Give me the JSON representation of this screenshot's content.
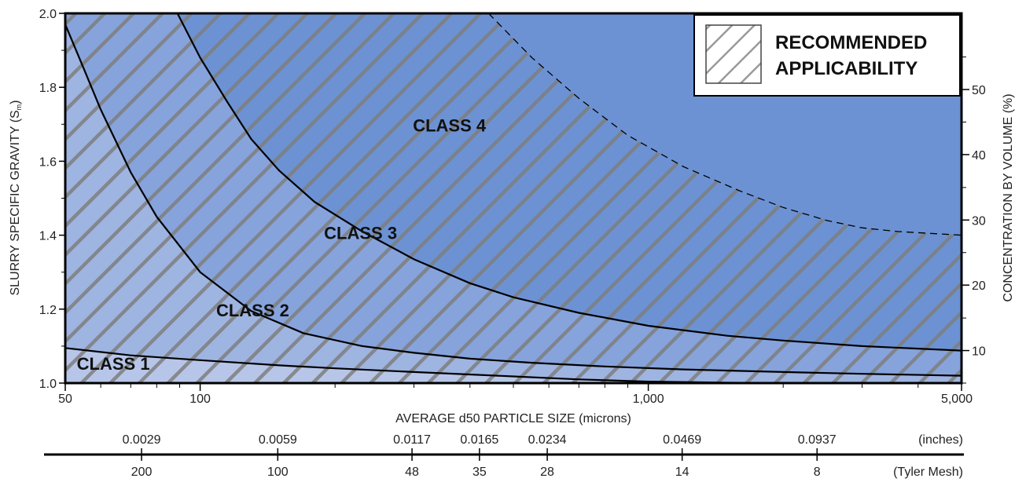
{
  "chart_data": {
    "type": "area",
    "x_scale": "log",
    "xlim": [
      50,
      5000
    ],
    "ylim": [
      1.0,
      2.0
    ],
    "xlabel": "AVERAGE d50 PARTICLE SIZE (microns)",
    "ylabel_main": "SLURRY SPECIFIC GRAVITY (S",
    "ylabel_sub": "m",
    "ylabel_close": ")",
    "y2label": "CONCENTRATION BY VOLUME (%)",
    "x_ticks": [
      {
        "value": 50,
        "label": "50"
      },
      {
        "value": 100,
        "label": "100"
      },
      {
        "value": 1000,
        "label": "1,000"
      },
      {
        "value": 5000,
        "label": "5,000"
      }
    ],
    "x_minor_ticks": [
      60,
      70,
      80,
      90,
      200,
      300,
      400,
      500,
      600,
      700,
      800,
      900,
      2000,
      3000,
      4000
    ],
    "y_ticks": [
      {
        "value": 1.0,
        "label": "1.0"
      },
      {
        "value": 1.2,
        "label": "1.2"
      },
      {
        "value": 1.4,
        "label": "1.4"
      },
      {
        "value": 1.6,
        "label": "1.6"
      },
      {
        "value": 1.8,
        "label": "1.8"
      },
      {
        "value": 2.0,
        "label": "2.0"
      }
    ],
    "y_minor_ticks": [
      1.1,
      1.3,
      1.5,
      1.7,
      1.9
    ],
    "y2_ticks": [
      {
        "sg": 1.088,
        "label": "10"
      },
      {
        "sg": 1.265,
        "label": "20"
      },
      {
        "sg": 1.441,
        "label": "30"
      },
      {
        "sg": 1.618,
        "label": "40"
      },
      {
        "sg": 1.794,
        "label": "50"
      }
    ],
    "y2_minor_ticks": [
      1.0,
      1.176,
      1.353,
      1.529,
      1.706,
      1.882
    ],
    "boundaries": [
      {
        "name": "class1-boundary",
        "style": "solid",
        "points": [
          [
            50,
            1.095
          ],
          [
            70,
            1.075
          ],
          [
            100,
            1.062
          ],
          [
            150,
            1.048
          ],
          [
            200,
            1.04
          ],
          [
            300,
            1.03
          ],
          [
            500,
            1.018
          ],
          [
            700,
            1.01
          ],
          [
            1000,
            1.004
          ],
          [
            1500,
            1.001
          ],
          [
            2000,
            1.0
          ]
        ]
      },
      {
        "name": "class2-boundary",
        "style": "solid",
        "points": [
          [
            50,
            1.97
          ],
          [
            55,
            1.85
          ],
          [
            60,
            1.74
          ],
          [
            70,
            1.57
          ],
          [
            80,
            1.45
          ],
          [
            100,
            1.3
          ],
          [
            130,
            1.195
          ],
          [
            170,
            1.135
          ],
          [
            230,
            1.1
          ],
          [
            300,
            1.082
          ],
          [
            400,
            1.066
          ],
          [
            550,
            1.055
          ],
          [
            800,
            1.045
          ],
          [
            1200,
            1.037
          ],
          [
            2000,
            1.03
          ],
          [
            3000,
            1.025
          ],
          [
            5000,
            1.02
          ]
        ]
      },
      {
        "name": "class3-boundary",
        "style": "solid",
        "points": [
          [
            89,
            2.0
          ],
          [
            100,
            1.88
          ],
          [
            115,
            1.76
          ],
          [
            130,
            1.66
          ],
          [
            150,
            1.575
          ],
          [
            180,
            1.49
          ],
          [
            230,
            1.41
          ],
          [
            300,
            1.335
          ],
          [
            400,
            1.27
          ],
          [
            500,
            1.232
          ],
          [
            700,
            1.19
          ],
          [
            1000,
            1.155
          ],
          [
            1500,
            1.128
          ],
          [
            2000,
            1.115
          ],
          [
            3000,
            1.1
          ],
          [
            5000,
            1.088
          ]
        ]
      },
      {
        "name": "applicability-boundary",
        "style": "dashed",
        "points": [
          [
            440,
            2.0
          ],
          [
            550,
            1.88
          ],
          [
            700,
            1.77
          ],
          [
            900,
            1.67
          ],
          [
            1200,
            1.585
          ],
          [
            1600,
            1.52
          ],
          [
            2000,
            1.475
          ],
          [
            2500,
            1.44
          ],
          [
            3000,
            1.42
          ],
          [
            3600,
            1.41
          ],
          [
            5000,
            1.4
          ]
        ]
      }
    ],
    "region_colors": {
      "class1": "#b7c6e8",
      "class2": "#9eb4e1",
      "class3": "#86a3dc",
      "class4": "#6c92d3"
    },
    "hatch_color": "#7e7e7e",
    "labels": [
      {
        "text": "CLASS 1",
        "x": 64,
        "y": 1.036
      },
      {
        "text": "CLASS 2",
        "x": 131,
        "y": 1.18
      },
      {
        "text": "CLASS 3",
        "x": 228,
        "y": 1.39
      },
      {
        "text": "CLASS 4",
        "x": 360,
        "y": 1.68
      }
    ],
    "legend": {
      "line1": "RECOMMENDED",
      "line2": "APPLICABILITY",
      "placement": "top-right"
    },
    "inches_scale": {
      "unit_label": "(inches)",
      "ticks": [
        {
          "microns": 74,
          "label": "0.0029"
        },
        {
          "microns": 149,
          "label": "0.0059"
        },
        {
          "microns": 297,
          "label": "0.0117"
        },
        {
          "microns": 420,
          "label": "0.0165"
        },
        {
          "microns": 595,
          "label": "0.0234"
        },
        {
          "microns": 1190,
          "label": "0.0469"
        },
        {
          "microns": 2380,
          "label": "0.0937"
        }
      ]
    },
    "tyler_mesh_scale": {
      "unit_label": "(Tyler Mesh)",
      "ticks": [
        {
          "microns": 74,
          "label": "200"
        },
        {
          "microns": 149,
          "label": "100"
        },
        {
          "microns": 297,
          "label": "48"
        },
        {
          "microns": 420,
          "label": "35"
        },
        {
          "microns": 595,
          "label": "28"
        },
        {
          "microns": 1190,
          "label": "14"
        },
        {
          "microns": 2380,
          "label": "8"
        }
      ]
    }
  }
}
